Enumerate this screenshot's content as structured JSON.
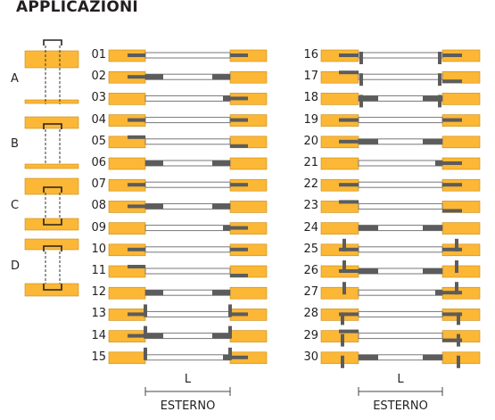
{
  "title": "APPLICAZIONI",
  "groups": [
    "A",
    "B",
    "C",
    "D"
  ],
  "left_numbers": [
    "01",
    "02",
    "03",
    "04",
    "05",
    "06",
    "07",
    "08",
    "09",
    "10",
    "11",
    "12",
    "13",
    "14",
    "15"
  ],
  "right_numbers": [
    "16",
    "17",
    "18",
    "19",
    "20",
    "21",
    "22",
    "23",
    "24",
    "25",
    "26",
    "27",
    "28",
    "29",
    "30"
  ],
  "dimension_label": "L",
  "side_label": "ESTERNO",
  "colors": {
    "wood": "#fbb735",
    "wood_edge": "#c88a12",
    "hinge": "#5c5c5c",
    "panel_edge": "#777777",
    "text": "#231f20"
  }
}
